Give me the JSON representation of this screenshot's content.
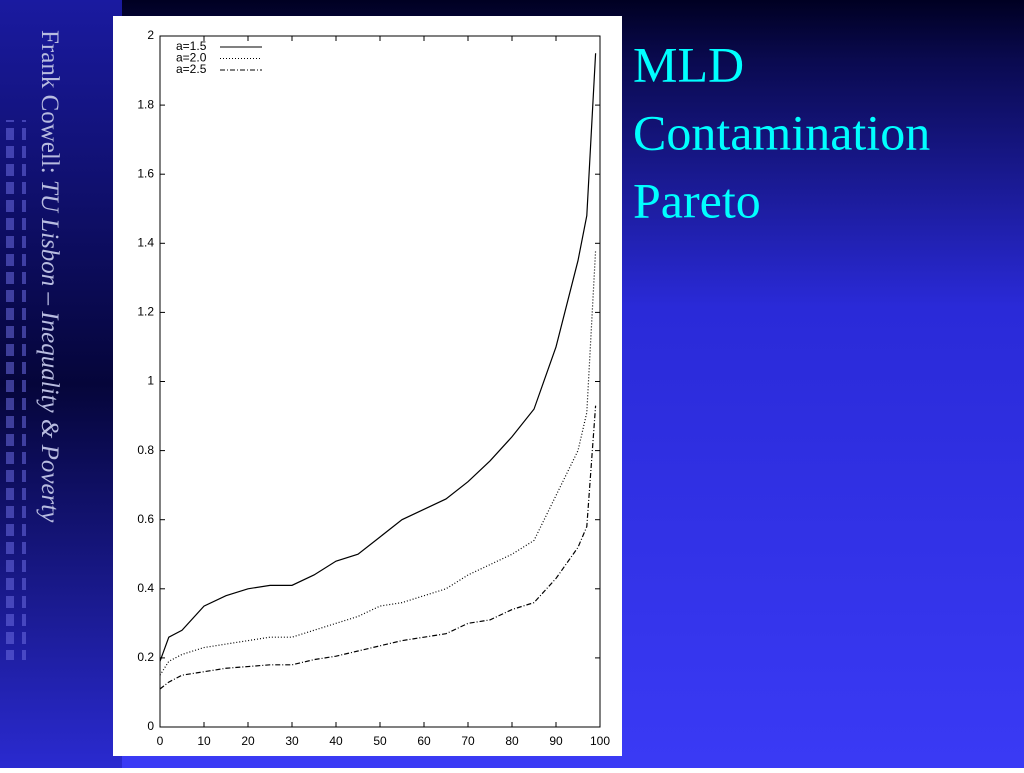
{
  "slide": {
    "title_lines": [
      "MLD",
      "Contamination",
      "Pareto"
    ],
    "sidebar": [
      "Frank Cowell: ",
      "TU Lisbon – Inequality & Poverty"
    ]
  },
  "chart_data": {
    "type": "line",
    "x": [
      0,
      2,
      5,
      10,
      15,
      20,
      25,
      30,
      35,
      40,
      45,
      50,
      55,
      60,
      65,
      70,
      75,
      80,
      85,
      90,
      95,
      97,
      99
    ],
    "series": [
      {
        "name": "a=1.5",
        "color": "#000000",
        "dash": "none",
        "values": [
          0.19,
          0.26,
          0.28,
          0.35,
          0.38,
          0.4,
          0.41,
          0.41,
          0.44,
          0.48,
          0.5,
          0.55,
          0.6,
          0.63,
          0.66,
          0.71,
          0.77,
          0.84,
          0.92,
          1.1,
          1.35,
          1.48,
          1.95
        ]
      },
      {
        "name": "a=2.0",
        "color": "#000000",
        "dash": "1,2",
        "values": [
          0.15,
          0.19,
          0.21,
          0.23,
          0.24,
          0.25,
          0.26,
          0.26,
          0.28,
          0.3,
          0.32,
          0.35,
          0.36,
          0.38,
          0.4,
          0.44,
          0.47,
          0.5,
          0.54,
          0.67,
          0.8,
          0.91,
          1.38
        ]
      },
      {
        "name": "a=2.5",
        "color": "#000000",
        "dash": "5,2,1,2",
        "values": [
          0.11,
          0.13,
          0.15,
          0.16,
          0.17,
          0.175,
          0.18,
          0.18,
          0.195,
          0.205,
          0.22,
          0.235,
          0.25,
          0.26,
          0.27,
          0.3,
          0.31,
          0.34,
          0.36,
          0.43,
          0.52,
          0.58,
          0.93
        ]
      }
    ],
    "xlim": [
      0,
      100
    ],
    "xticks": [
      0,
      10,
      20,
      30,
      40,
      50,
      60,
      70,
      80,
      90,
      100
    ],
    "ylim": [
      0,
      2
    ],
    "yticks": [
      0,
      0.2,
      0.4,
      0.6,
      0.8,
      1,
      1.2,
      1.4,
      1.6,
      1.8,
      2
    ],
    "legend": "upper-left",
    "grid": false
  }
}
